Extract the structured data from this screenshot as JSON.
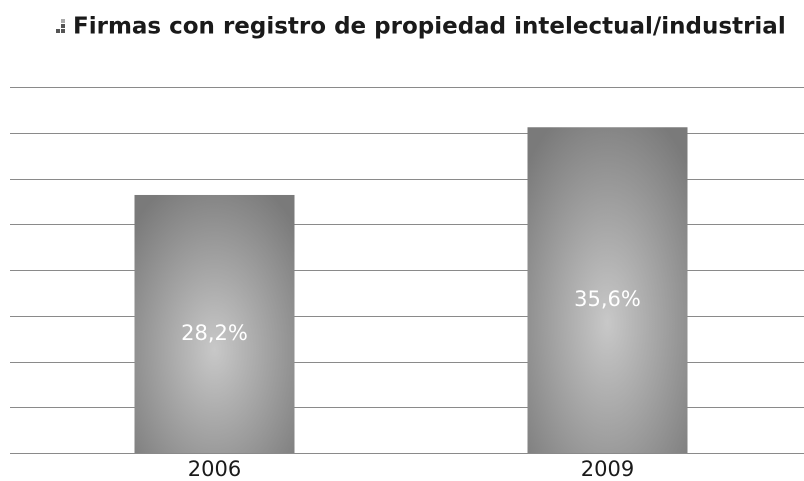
{
  "chart_data": {
    "type": "bar",
    "title": "Firmas con registro de propiedad intelectual/industrial",
    "categories": [
      "2006",
      "2009"
    ],
    "values": [
      28.2,
      35.6
    ],
    "value_labels": [
      "28,2%",
      "35,6%"
    ],
    "color": "#8c8c8c",
    "ylim": [
      0,
      40
    ],
    "yticks": [
      0,
      5,
      10,
      15,
      20,
      25,
      30,
      35,
      40
    ],
    "grid": true
  }
}
